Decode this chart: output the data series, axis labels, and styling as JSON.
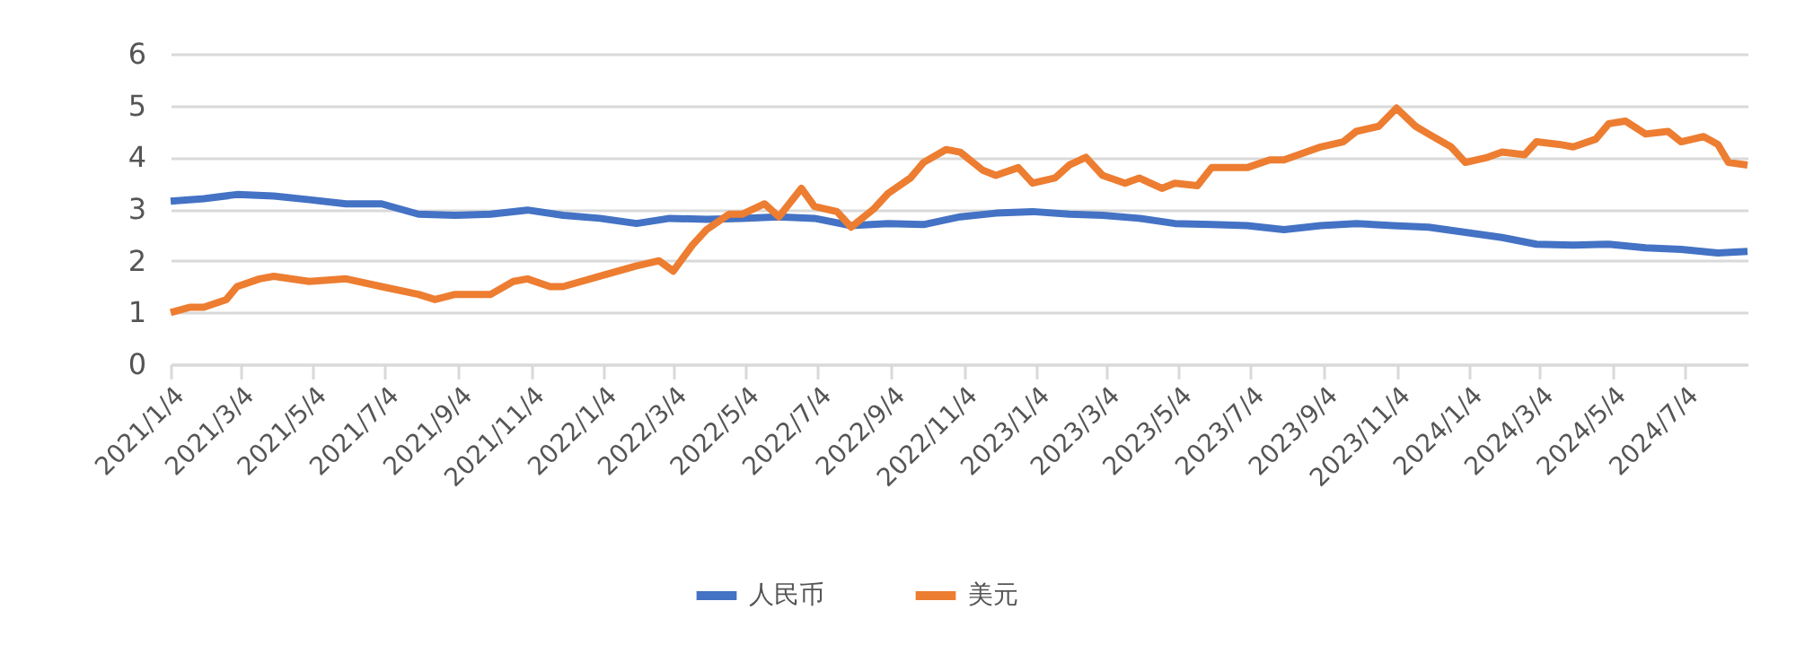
{
  "chart_data": {
    "type": "line",
    "xlim": [
      "2021-01-04",
      "2024-08-26"
    ],
    "ylim": [
      0,
      6
    ],
    "yticks": [
      0,
      1,
      2,
      3,
      4,
      5,
      6
    ],
    "xticks": [
      {
        "value": "2021-01-04",
        "label": "2021/1/4"
      },
      {
        "value": "2021-03-04",
        "label": "2021/3/4"
      },
      {
        "value": "2021-05-04",
        "label": "2021/5/4"
      },
      {
        "value": "2021-07-04",
        "label": "2021/7/4"
      },
      {
        "value": "2021-09-04",
        "label": "2021/9/4"
      },
      {
        "value": "2021-11-04",
        "label": "2021/11/4"
      },
      {
        "value": "2022-01-04",
        "label": "2022/1/4"
      },
      {
        "value": "2022-03-04",
        "label": "2022/3/4"
      },
      {
        "value": "2022-05-04",
        "label": "2022/5/4"
      },
      {
        "value": "2022-07-04",
        "label": "2022/7/4"
      },
      {
        "value": "2022-09-04",
        "label": "2022/9/4"
      },
      {
        "value": "2022-11-04",
        "label": "2022/11/4"
      },
      {
        "value": "2023-01-04",
        "label": "2023/1/4"
      },
      {
        "value": "2023-03-04",
        "label": "2023/3/4"
      },
      {
        "value": "2023-05-04",
        "label": "2023/5/4"
      },
      {
        "value": "2023-07-04",
        "label": "2023/7/4"
      },
      {
        "value": "2023-09-04",
        "label": "2023/9/4"
      },
      {
        "value": "2023-11-04",
        "label": "2023/11/4"
      },
      {
        "value": "2024-01-04",
        "label": "2024/1/4"
      },
      {
        "value": "2024-03-04",
        "label": "2024/3/4"
      },
      {
        "value": "2024-05-04",
        "label": "2024/5/4"
      },
      {
        "value": "2024-07-04",
        "label": "2024/7/4"
      }
    ],
    "grid": "y",
    "legend": "bottom",
    "marker": "none",
    "line_style": "solid",
    "series": [
      {
        "name": "人民币",
        "color": "#4472c4",
        "x": [
          "2021-01-04",
          "2021-02-01",
          "2021-03-01",
          "2021-04-01",
          "2021-05-01",
          "2021-06-01",
          "2021-07-01",
          "2021-08-01",
          "2021-09-01",
          "2021-10-01",
          "2021-11-01",
          "2021-12-01",
          "2022-01-01",
          "2022-02-01",
          "2022-03-01",
          "2022-04-01",
          "2022-05-01",
          "2022-06-01",
          "2022-07-01",
          "2022-08-01",
          "2022-09-01",
          "2022-10-01",
          "2022-11-01",
          "2022-12-01",
          "2023-01-01",
          "2023-02-01",
          "2023-03-01",
          "2023-04-01",
          "2023-05-01",
          "2023-06-01",
          "2023-07-01",
          "2023-08-01",
          "2023-09-01",
          "2023-10-01",
          "2023-11-01",
          "2023-12-01",
          "2024-01-01",
          "2024-02-01",
          "2024-03-01",
          "2024-04-01",
          "2024-05-01",
          "2024-06-01",
          "2024-07-01",
          "2024-08-01",
          "2024-08-26"
        ],
        "values": [
          3.15,
          3.2,
          3.28,
          3.25,
          3.18,
          3.1,
          3.1,
          2.9,
          2.88,
          2.9,
          2.98,
          2.88,
          2.82,
          2.72,
          2.82,
          2.8,
          2.82,
          2.85,
          2.82,
          2.68,
          2.72,
          2.7,
          2.85,
          2.92,
          2.95,
          2.9,
          2.88,
          2.82,
          2.72,
          2.7,
          2.68,
          2.6,
          2.68,
          2.72,
          2.68,
          2.65,
          2.55,
          2.45,
          2.32,
          2.3,
          2.32,
          2.25,
          2.22,
          2.15,
          2.18
        ]
      },
      {
        "name": "美元",
        "color": "#ed7d31",
        "x": [
          "2021-01-04",
          "2021-01-20",
          "2021-02-01",
          "2021-02-20",
          "2021-03-01",
          "2021-03-20",
          "2021-04-01",
          "2021-05-01",
          "2021-06-01",
          "2021-07-01",
          "2021-08-01",
          "2021-08-15",
          "2021-09-01",
          "2021-10-01",
          "2021-10-20",
          "2021-11-01",
          "2021-11-20",
          "2021-12-01",
          "2022-01-01",
          "2022-02-01",
          "2022-02-20",
          "2022-03-04",
          "2022-03-20",
          "2022-04-01",
          "2022-04-20",
          "2022-05-01",
          "2022-05-20",
          "2022-06-01",
          "2022-06-20",
          "2022-07-01",
          "2022-07-20",
          "2022-08-01",
          "2022-08-20",
          "2022-09-01",
          "2022-09-20",
          "2022-10-01",
          "2022-10-20",
          "2022-11-01",
          "2022-11-20",
          "2022-12-01",
          "2022-12-20",
          "2023-01-01",
          "2023-01-20",
          "2023-02-01",
          "2023-02-15",
          "2023-03-01",
          "2023-03-20",
          "2023-04-01",
          "2023-04-20",
          "2023-05-01",
          "2023-05-20",
          "2023-06-01",
          "2023-07-01",
          "2023-07-20",
          "2023-08-01",
          "2023-09-01",
          "2023-09-20",
          "2023-10-01",
          "2023-10-20",
          "2023-11-04",
          "2023-11-20",
          "2023-12-01",
          "2023-12-20",
          "2024-01-01",
          "2024-01-20",
          "2024-02-01",
          "2024-02-20",
          "2024-03-01",
          "2024-03-20",
          "2024-04-01",
          "2024-04-20",
          "2024-05-01",
          "2024-05-15",
          "2024-06-01",
          "2024-06-20",
          "2024-07-01",
          "2024-07-20",
          "2024-08-01",
          "2024-08-10",
          "2024-08-26"
        ],
        "values": [
          1.0,
          1.1,
          1.1,
          1.25,
          1.5,
          1.65,
          1.7,
          1.6,
          1.65,
          1.5,
          1.35,
          1.25,
          1.35,
          1.35,
          1.6,
          1.65,
          1.5,
          1.5,
          1.7,
          1.9,
          2.0,
          1.8,
          2.3,
          2.6,
          2.9,
          2.9,
          3.1,
          2.85,
          3.4,
          3.05,
          2.95,
          2.65,
          3.0,
          3.3,
          3.6,
          3.9,
          4.15,
          4.1,
          3.75,
          3.65,
          3.8,
          3.5,
          3.6,
          3.85,
          4.0,
          3.65,
          3.5,
          3.6,
          3.4,
          3.5,
          3.45,
          3.8,
          3.8,
          3.95,
          3.95,
          4.2,
          4.3,
          4.5,
          4.6,
          4.95,
          4.6,
          4.45,
          4.2,
          3.9,
          4.0,
          4.1,
          4.05,
          4.3,
          4.25,
          4.2,
          4.35,
          4.65,
          4.7,
          4.45,
          4.5,
          4.3,
          4.4,
          4.25,
          3.9,
          3.85
        ]
      }
    ]
  }
}
